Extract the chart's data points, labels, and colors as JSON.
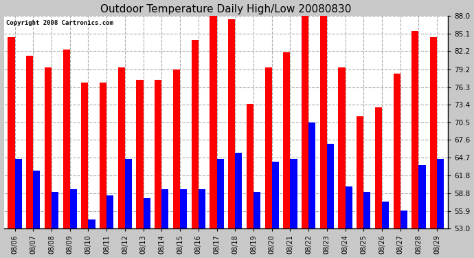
{
  "title": "Outdoor Temperature Daily High/Low 20080830",
  "copyright": "Copyright 2008 Cartronics.com",
  "dates": [
    "08/06",
    "08/07",
    "08/08",
    "08/09",
    "08/10",
    "08/11",
    "08/12",
    "08/13",
    "08/14",
    "08/15",
    "08/16",
    "08/17",
    "08/18",
    "08/19",
    "08/20",
    "08/21",
    "08/22",
    "08/23",
    "08/24",
    "08/25",
    "08/26",
    "08/27",
    "08/28",
    "08/29"
  ],
  "highs": [
    84.5,
    81.5,
    79.5,
    82.5,
    77.0,
    77.0,
    79.5,
    77.5,
    77.5,
    79.2,
    84.0,
    88.0,
    87.5,
    73.5,
    79.5,
    82.0,
    88.0,
    88.0,
    79.5,
    71.5,
    73.0,
    78.5,
    85.5,
    84.5
  ],
  "lows": [
    64.5,
    62.5,
    59.0,
    59.5,
    54.5,
    58.5,
    64.5,
    58.0,
    59.5,
    59.5,
    59.5,
    64.5,
    65.5,
    59.0,
    64.0,
    64.5,
    70.5,
    67.0,
    60.0,
    59.0,
    57.5,
    56.0,
    63.5,
    64.5
  ],
  "ylim": [
    53.0,
    88.0
  ],
  "yticks": [
    53.0,
    55.9,
    58.8,
    61.8,
    64.7,
    67.6,
    70.5,
    73.4,
    76.3,
    79.2,
    82.2,
    85.1,
    88.0
  ],
  "high_color": "#ff0000",
  "low_color": "#0000ff",
  "bg_color": "#c8c8c8",
  "plot_bg_color": "#ffffff",
  "grid_color": "#aaaaaa",
  "title_fontsize": 11,
  "bar_width": 0.38
}
